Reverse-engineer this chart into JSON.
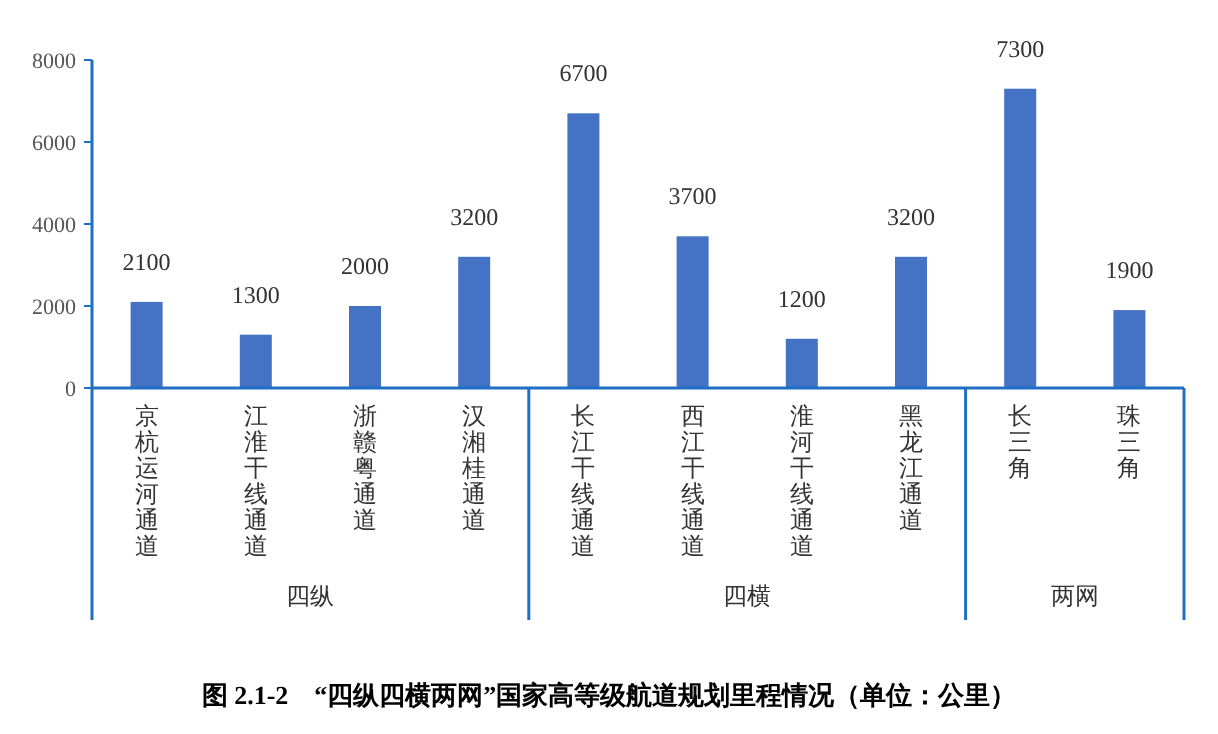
{
  "chart_data": {
    "type": "bar",
    "title": "图 2.1-2　“四纵四横两网”国家高等级航道规划里程情况（单位：公里）",
    "categories": [
      "京杭运河通道",
      "江淮干线通道",
      "浙赣粤通道",
      "汉湘桂通道",
      "长江干线通道",
      "西江干线通道",
      "淮河干线通道",
      "黑龙江通道",
      "长三角",
      "珠三角"
    ],
    "values": [
      2100,
      1300,
      2000,
      3200,
      6700,
      3700,
      1200,
      3200,
      7300,
      1900
    ],
    "color": "#4472c4",
    "ylim": [
      0,
      8000
    ],
    "yticks": [
      0,
      2000,
      4000,
      6000,
      8000
    ],
    "data_labels": true,
    "annotations": [
      "四纵",
      "四横",
      "两网"
    ]
  }
}
